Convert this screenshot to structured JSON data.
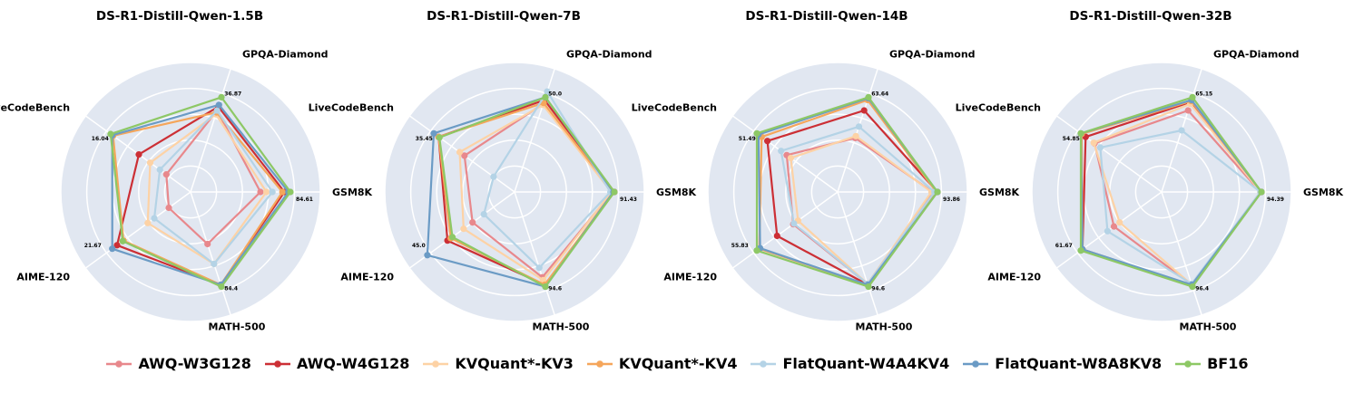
{
  "chart_data": [
    {
      "type": "radar",
      "title": "DS-R1-Distill-Qwen-1.5B",
      "axes": [
        "GPQA-Diamond",
        "GSM8K",
        "MATH-500",
        "AIME-120",
        "LiveCodeBench"
      ],
      "max_labels": [
        "36.87",
        "84.61",
        "84.4",
        "21.67",
        "16.04"
      ],
      "max_values": [
        36.87,
        84.61,
        84.4,
        21.67,
        16.04
      ],
      "series": [
        {
          "name": "AWQ-W3G128",
          "values": [
            0.86,
            0.7,
            0.55,
            0.27,
            0.3
          ]
        },
        {
          "name": "AWQ-W4G128",
          "values": [
            0.9,
            0.94,
            0.98,
            0.91,
            0.64
          ]
        },
        {
          "name": "KVQuant*-KV3",
          "values": [
            0.82,
            0.76,
            0.76,
            0.53,
            0.5
          ]
        },
        {
          "name": "KVQuant*-KV4",
          "values": [
            0.84,
            0.92,
            0.98,
            0.83,
            0.96
          ]
        },
        {
          "name": "FlatQuant-W4A4KV4",
          "values": [
            0.86,
            0.82,
            0.76,
            0.45,
            0.38
          ]
        },
        {
          "name": "FlatQuant-W8A8KV8",
          "values": [
            0.92,
            0.98,
            0.98,
            0.97,
            0.97
          ]
        },
        {
          "name": "BF16",
          "values": [
            1.0,
            1.0,
            1.0,
            0.84,
            0.99
          ]
        }
      ]
    },
    {
      "type": "radar",
      "title": "DS-R1-Distill-Qwen-7B",
      "axes": [
        "GPQA-Diamond",
        "GSM8K",
        "MATH-500",
        "AIME-120",
        "LiveCodeBench"
      ],
      "max_labels": [
        "50.0",
        "91.43",
        "94.6",
        "45.0",
        "35.45"
      ],
      "max_values": [
        50.0,
        91.43,
        94.6,
        45.0,
        35.45
      ],
      "series": [
        {
          "name": "AWQ-W3G128",
          "values": [
            0.93,
            0.98,
            0.9,
            0.52,
            0.62
          ]
        },
        {
          "name": "AWQ-W4G128",
          "values": [
            0.97,
            1.0,
            0.98,
            0.83,
            0.94
          ]
        },
        {
          "name": "KVQuant*-KV3",
          "values": [
            0.92,
            0.97,
            0.93,
            0.63,
            0.68
          ]
        },
        {
          "name": "KVQuant*-KV4",
          "values": [
            0.94,
            0.99,
            0.98,
            0.79,
            0.94
          ]
        },
        {
          "name": "FlatQuant-W4A4KV4",
          "values": [
            1.06,
            0.96,
            0.8,
            0.38,
            0.26
          ]
        },
        {
          "name": "FlatQuant-W8A8KV8",
          "values": [
            1.0,
            0.99,
            1.0,
            1.08,
            1.0
          ]
        },
        {
          "name": "BF16",
          "values": [
            1.0,
            1.0,
            1.0,
            0.77,
            0.93
          ]
        }
      ]
    },
    {
      "type": "radar",
      "title": "DS-R1-Distill-Qwen-14B",
      "axes": [
        "GPQA-Diamond",
        "GSM8K",
        "MATH-500",
        "AIME-120",
        "LiveCodeBench"
      ],
      "max_labels": [
        "63.64",
        "93.86",
        "94.6",
        "55.83",
        "51.49"
      ],
      "max_values": [
        63.64,
        93.86,
        94.6,
        55.83,
        51.49
      ],
      "series": [
        {
          "name": "AWQ-W3G128",
          "values": [
            0.57,
            0.95,
            0.97,
            0.55,
            0.63
          ]
        },
        {
          "name": "AWQ-W4G128",
          "values": [
            0.86,
            1.0,
            0.98,
            0.75,
            0.87
          ]
        },
        {
          "name": "KVQuant*-KV3",
          "values": [
            0.59,
            0.94,
            0.97,
            0.49,
            0.58
          ]
        },
        {
          "name": "KVQuant*-KV4",
          "values": [
            0.97,
            0.99,
            0.98,
            0.97,
            0.94
          ]
        },
        {
          "name": "FlatQuant-W4A4KV4",
          "values": [
            0.69,
            0.97,
            0.97,
            0.54,
            0.7
          ]
        },
        {
          "name": "FlatQuant-W8A8KV8",
          "values": [
            0.99,
            1.0,
            0.98,
            0.96,
            0.98
          ]
        },
        {
          "name": "BF16",
          "values": [
            1.0,
            1.0,
            1.0,
            1.0,
            1.0
          ]
        }
      ]
    },
    {
      "type": "radar",
      "title": "DS-R1-Distill-Qwen-32B",
      "axes": [
        "GPQA-Diamond",
        "GSM8K",
        "MATH-500",
        "AIME-120",
        "LiveCodeBench"
      ],
      "max_labels": [
        "65.15",
        "94.39",
        "96.4",
        "61.67",
        "54.85"
      ],
      "max_values": [
        65.15,
        94.39,
        96.4,
        61.67,
        54.85
      ],
      "series": [
        {
          "name": "AWQ-W3G128",
          "values": [
            0.86,
            0.99,
            0.98,
            0.59,
            0.83
          ]
        },
        {
          "name": "AWQ-W4G128",
          "values": [
            0.95,
            1.0,
            0.99,
            0.98,
            0.94
          ]
        },
        {
          "name": "KVQuant*-KV3",
          "values": [
            0.93,
            0.99,
            0.98,
            0.52,
            0.84
          ]
        },
        {
          "name": "KVQuant*-KV4",
          "values": [
            0.96,
            1.0,
            0.99,
            0.98,
            0.99
          ]
        },
        {
          "name": "FlatQuant-W4A4KV4",
          "values": [
            0.65,
            0.99,
            0.97,
            0.67,
            0.76
          ]
        },
        {
          "name": "FlatQuant-W8A8KV8",
          "values": [
            0.97,
            1.0,
            0.98,
            0.98,
            1.0
          ]
        },
        {
          "name": "BF16",
          "values": [
            1.0,
            1.0,
            1.0,
            1.0,
            1.0
          ]
        }
      ]
    }
  ],
  "legend": [
    {
      "name": "AWQ-W3G128",
      "color": "#e8888c"
    },
    {
      "name": "AWQ-W4G128",
      "color": "#cc2f35"
    },
    {
      "name": "KVQuant*-KV3",
      "color": "#fdd2a5"
    },
    {
      "name": "KVQuant*-KV4",
      "color": "#f5a65b"
    },
    {
      "name": "FlatQuant-W4A4KV4",
      "color": "#b4d3e6"
    },
    {
      "name": "FlatQuant-W8A8KV8",
      "color": "#6b9bc5"
    },
    {
      "name": "BF16",
      "color": "#8dc865"
    }
  ],
  "style": {
    "background_disc": "#e1e7f1",
    "grid_rings": 5,
    "grid_color": "#ffffff",
    "legend_position": "bottom"
  }
}
